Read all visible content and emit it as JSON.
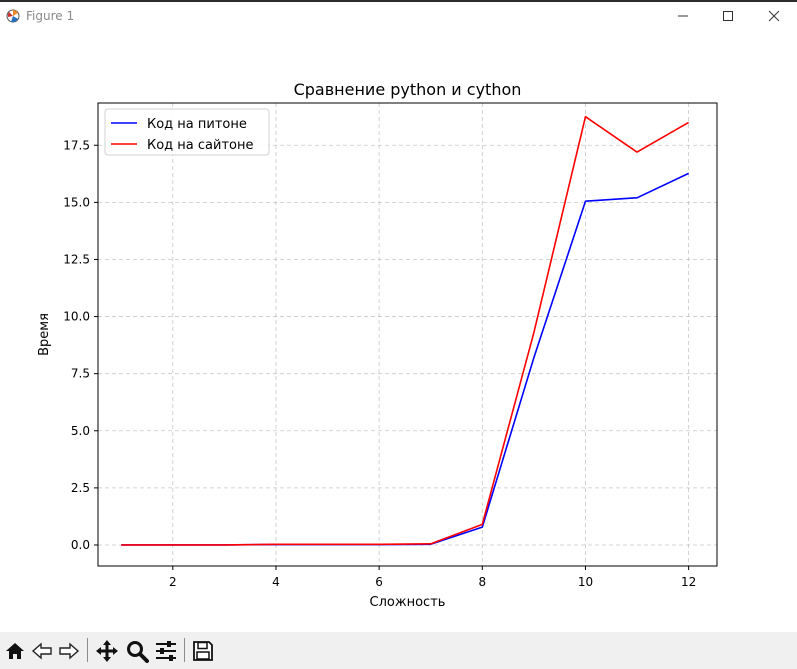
{
  "window": {
    "title": "Figure 1"
  },
  "toolbar": {
    "buttons": [
      "home-icon",
      "back-arrow-icon",
      "forward-arrow-icon",
      "pan-icon",
      "zoom-icon",
      "configure-subplots-icon",
      "save-icon"
    ]
  },
  "chart_data": {
    "type": "line",
    "title": "Сравнение python и cython",
    "xlabel": "Сложность",
    "ylabel": "Время",
    "xlim": [
      0.55,
      12.55
    ],
    "ylim": [
      -0.92,
      19.35
    ],
    "xticks": [
      2,
      4,
      6,
      8,
      10,
      12
    ],
    "xtick_labels": [
      "2",
      "4",
      "6",
      "8",
      "10",
      "12"
    ],
    "yticks": [
      0.0,
      2.5,
      5.0,
      7.5,
      10.0,
      12.5,
      15.0,
      17.5
    ],
    "ytick_labels": [
      "0.0",
      "2.5",
      "5.0",
      "7.5",
      "10.0",
      "12.5",
      "15.0",
      "17.5"
    ],
    "grid": true,
    "legend_position": "upper-left",
    "x": [
      1,
      2,
      3,
      4,
      5,
      6,
      7,
      8,
      9,
      10,
      11,
      12
    ],
    "series": [
      {
        "name": "Код на питоне",
        "color": "#0000ff",
        "values": [
          0.0,
          0.0,
          0.0,
          0.02,
          0.02,
          0.02,
          0.03,
          0.78,
          8.2,
          15.05,
          15.2,
          16.27
        ]
      },
      {
        "name": "Код на сайтоне",
        "color": "#ff0000",
        "values": [
          0.0,
          0.0,
          0.0,
          0.03,
          0.03,
          0.03,
          0.05,
          0.9,
          9.3,
          18.75,
          17.2,
          18.5
        ]
      }
    ]
  }
}
